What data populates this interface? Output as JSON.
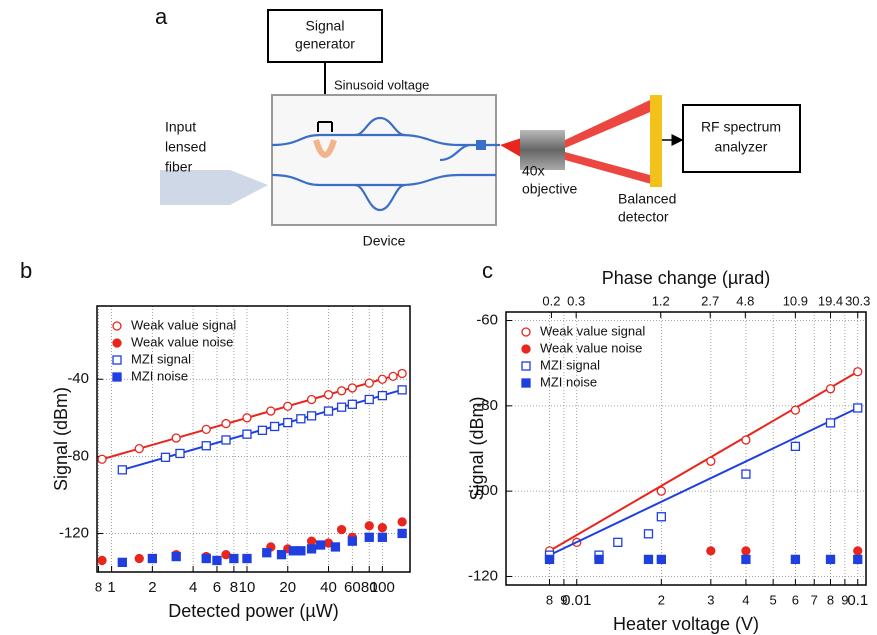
{
  "diagram": {
    "panel_label": "a",
    "signal_generator": [
      "Signal",
      "generator"
    ],
    "sinusoid_voltage": "Sinusoid voltage",
    "fiber": [
      "Input",
      "lensed",
      "fiber"
    ],
    "device": "Device",
    "objective": [
      "40x",
      "objective"
    ],
    "detector": [
      "Balanced",
      "detector"
    ],
    "analyzer": [
      "RF spectrum",
      "analyzer"
    ]
  },
  "chart_data": [
    {
      "panel_label": "b",
      "type": "scatter",
      "x_label": "Detected power (µW)",
      "y_label": "Signal (dBm)",
      "xscale": "log",
      "xlim": [
        0.78,
        160
      ],
      "xticks": [
        {
          "value": 0.8,
          "label": "8"
        },
        1,
        2,
        4,
        6,
        8,
        10,
        20,
        40,
        60,
        80,
        100
      ],
      "ylim": [
        -140,
        -2
      ],
      "yticks": [
        -40,
        -80,
        -120
      ],
      "grid": true,
      "legend": "upper left",
      "series": [
        {
          "name": "Weak value signal",
          "color": "#e8261e",
          "marker": "open-circle",
          "fit": true,
          "x": [
            0.85,
            1.6,
            3,
            5,
            7,
            10,
            15,
            20,
            30,
            40,
            50,
            60,
            80,
            100,
            120,
            140
          ],
          "values": [
            -81.5,
            -76,
            -70.5,
            -66,
            -63,
            -60,
            -56.5,
            -54,
            -50.5,
            -48,
            -46,
            -44.5,
            -42,
            -40,
            -38.5,
            -37
          ]
        },
        {
          "name": "Weak value noise",
          "color": "#e8261e",
          "marker": "filled-circle",
          "fit": false,
          "x": [
            0.85,
            1.6,
            3,
            5,
            7,
            10,
            15,
            20,
            30,
            40,
            50,
            60,
            80,
            100,
            140
          ],
          "values": [
            -134,
            -133,
            -131,
            -132,
            -131,
            -133,
            -127,
            -128,
            -124,
            -125,
            -118,
            -122,
            -116,
            -117,
            -114
          ]
        },
        {
          "name": "MZI signal",
          "color": "#1f3fe0",
          "marker": "open-square",
          "fit": true,
          "x": [
            1.2,
            2.5,
            3.2,
            5,
            7,
            10,
            13,
            16,
            20,
            25,
            30,
            40,
            50,
            60,
            80,
            100,
            140
          ],
          "values": [
            -87,
            -80.5,
            -78.5,
            -74.5,
            -71.5,
            -68.5,
            -66.5,
            -64.5,
            -62.5,
            -60.5,
            -59,
            -56.5,
            -54.5,
            -53,
            -50.5,
            -48.5,
            -45.5
          ]
        },
        {
          "name": "MZI noise",
          "color": "#1f3fe0",
          "marker": "filled-square",
          "fit": false,
          "x": [
            1.2,
            2,
            3,
            5,
            6,
            8,
            10,
            14,
            18,
            22,
            25,
            30,
            35,
            45,
            60,
            80,
            100,
            140
          ],
          "values": [
            -135,
            -133,
            -132,
            -133,
            -134,
            -133,
            -133,
            -130,
            -131,
            -129,
            -129,
            -128,
            -126,
            -127,
            -124,
            -122,
            -122,
            -120
          ]
        }
      ]
    },
    {
      "panel_label": "c",
      "type": "scatter",
      "x_label": "Heater voltage (V)",
      "y_label": "Signal (dBm)",
      "x2_label": "Phase change (µrad)",
      "xscale": "log",
      "xlim": [
        0.0056,
        0.107
      ],
      "xticks": [
        {
          "value": 0.008,
          "label": "8"
        },
        {
          "value": 0.009,
          "label": "9"
        },
        0.01,
        {
          "value": 0.02,
          "label": "2"
        },
        {
          "value": 0.03,
          "label": "3"
        },
        {
          "value": 0.04,
          "label": "4"
        },
        {
          "value": 0.05,
          "label": "5"
        },
        {
          "value": 0.06,
          "label": "6"
        },
        {
          "value": 0.07,
          "label": "7"
        },
        {
          "value": 0.08,
          "label": "8"
        },
        {
          "value": 0.09,
          "label": "9"
        },
        0.1
      ],
      "x2lim": [
        0.095,
        34.7
      ],
      "x2ticks": [
        0.2,
        0.3,
        1.2,
        2.7,
        4.8,
        10.9,
        19.4,
        30.3
      ],
      "ylim": [
        -122,
        -58
      ],
      "yticks": [
        -60,
        -80,
        -100,
        -120
      ],
      "grid": true,
      "legend": "upper left",
      "series": [
        {
          "name": "Weak value signal",
          "color": "#e8261e",
          "marker": "open-circle",
          "fit": true,
          "x": [
            0.008,
            0.01,
            0.02,
            0.03,
            0.04,
            0.06,
            0.08,
            0.1
          ],
          "values": [
            -114,
            -112,
            -100,
            -93,
            -88,
            -81,
            -76,
            -72
          ]
        },
        {
          "name": "Weak value noise",
          "color": "#e8261e",
          "marker": "filled-circle",
          "fit": false,
          "x": [
            0.008,
            0.012,
            0.02,
            0.03,
            0.04,
            0.06,
            0.08,
            0.1
          ],
          "values": [
            -116,
            -116,
            -116,
            -114,
            -114,
            -116,
            -116,
            -114
          ]
        },
        {
          "name": "MZI signal",
          "color": "#1f3fe0",
          "marker": "open-square",
          "fit": true,
          "x": [
            0.008,
            0.012,
            0.014,
            0.018,
            0.02,
            0.04,
            0.06,
            0.08,
            0.1
          ],
          "values": [
            -115,
            -115,
            -112,
            -110,
            -106,
            -96,
            -89.5,
            -84,
            -80.5
          ]
        },
        {
          "name": "MZI noise",
          "color": "#1f3fe0",
          "marker": "filled-square",
          "fit": false,
          "x": [
            0.008,
            0.012,
            0.018,
            0.02,
            0.04,
            0.06,
            0.08,
            0.1
          ],
          "values": [
            -116,
            -116,
            -116,
            -116,
            -116,
            -116,
            -116,
            -116
          ]
        }
      ]
    }
  ]
}
